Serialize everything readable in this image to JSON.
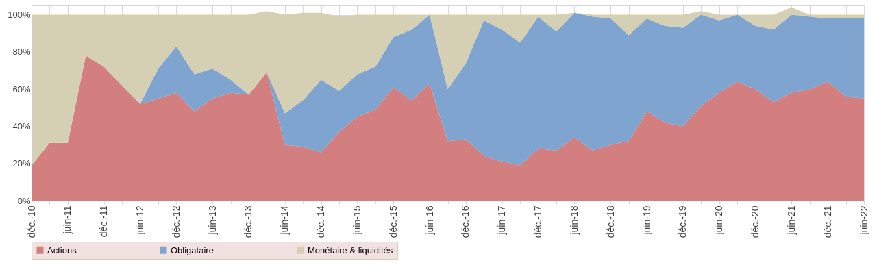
{
  "chart_data": {
    "type": "area",
    "stacked": true,
    "categories": [
      "déc.-10",
      null,
      "juin-11",
      null,
      "déc.-11",
      null,
      "juin-12",
      null,
      "déc.-12",
      null,
      "juin-13",
      null,
      "déc.-13",
      null,
      "juin-14",
      null,
      "déc.-14",
      null,
      "juin-15",
      null,
      "déc.-15",
      null,
      "juin-16",
      null,
      "déc.-16",
      null,
      "juin-17",
      null,
      "déc.-17",
      null,
      "juin-18",
      null,
      "déc.-18",
      null,
      "juin-19",
      null,
      "déc.-19",
      null,
      "juin-20",
      null,
      "déc.-20",
      null,
      "juin-21",
      null,
      "déc.-21",
      null,
      "juin-22"
    ],
    "series": [
      {
        "name": "Actions",
        "color": "#d37f80",
        "values": [
          19,
          31,
          31,
          78,
          72,
          62,
          52,
          55,
          58,
          48,
          55,
          58,
          57,
          69,
          30,
          29,
          26,
          37,
          45,
          49,
          61,
          54,
          63,
          32,
          33,
          24,
          21,
          19,
          28,
          27,
          34,
          27,
          30,
          32,
          48,
          42,
          40,
          51,
          58,
          64,
          60,
          53,
          58,
          60,
          64,
          56,
          55
        ]
      },
      {
        "name": "Obligataire",
        "color": "#7fa4cf",
        "values": [
          0,
          0,
          0,
          0,
          0,
          0,
          0,
          16,
          25,
          20,
          16,
          7,
          0,
          0,
          17,
          25,
          39,
          22,
          23,
          23,
          27,
          38,
          37,
          28,
          41,
          73,
          71,
          66,
          71,
          64,
          67,
          72,
          68,
          57,
          50,
          52,
          53,
          49,
          39,
          36,
          34,
          39,
          42,
          39,
          34,
          42,
          43
        ]
      },
      {
        "name": "Monétaire & liquidités",
        "color": "#d5cfb4",
        "values": [
          81,
          69,
          69,
          22,
          28,
          38,
          48,
          29,
          17,
          32,
          29,
          35,
          43,
          33,
          53,
          47,
          36,
          40,
          32,
          28,
          12,
          8,
          0,
          40,
          26,
          3,
          8,
          15,
          1,
          9,
          0,
          1,
          2,
          11,
          2,
          6,
          7,
          2,
          3,
          0,
          6,
          8,
          4,
          1,
          2,
          2,
          2
        ]
      }
    ],
    "ylim": [
      0,
      105
    ],
    "yticks": [
      {
        "value": 0,
        "label": "0%"
      },
      {
        "value": 20,
        "label": "20%"
      },
      {
        "value": 40,
        "label": "40%"
      },
      {
        "value": 60,
        "label": "60%"
      },
      {
        "value": 80,
        "label": "80%"
      },
      {
        "value": 100,
        "label": "100%"
      }
    ],
    "grid": true,
    "legend": "bottom"
  }
}
